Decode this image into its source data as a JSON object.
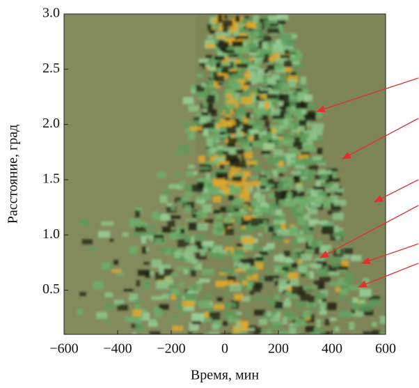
{
  "chart_data": {
    "type": "image",
    "xlabel": "Время, мин",
    "ylabel": "Расстояние, град",
    "xlim": [
      -600,
      600
    ],
    "ylim": [
      0.1,
      3.0
    ],
    "xticks": [
      {
        "value": -600,
        "label": "−600"
      },
      {
        "value": -400,
        "label": "−400"
      },
      {
        "value": -200,
        "label": "−200"
      },
      0,
      200,
      400,
      600
    ],
    "yticks": [
      0.5,
      {
        "value": 1.0,
        "label": "1.0"
      },
      1.5,
      {
        "value": 2.0,
        "label": "2.0"
      },
      2.5,
      {
        "value": 3.0,
        "label": "3.0"
      }
    ]
  }
}
